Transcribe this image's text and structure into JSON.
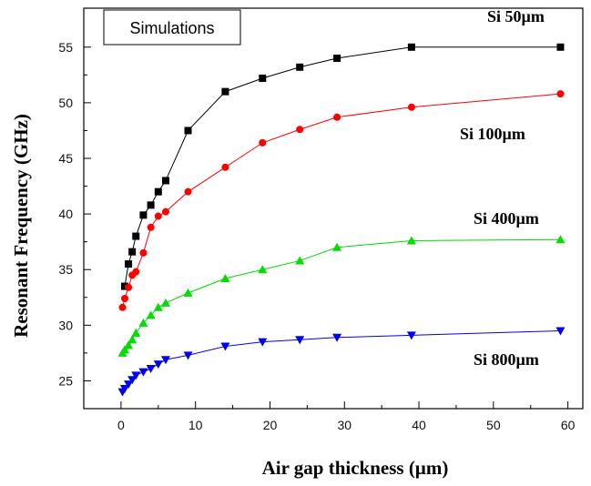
{
  "chart_data": {
    "type": "line",
    "xlabel": "Air gap thickness (µm)",
    "ylabel": "Resonant Frequency (GHz)",
    "annotation": "Simulations",
    "xlim": [
      -5,
      62
    ],
    "ylim": [
      22.5,
      58.5
    ],
    "xticks": [
      0,
      10,
      20,
      30,
      40,
      50,
      60
    ],
    "yticks": [
      25,
      30,
      35,
      40,
      45,
      50,
      55
    ],
    "grid": false,
    "series": [
      {
        "name": "Si 50µm",
        "color": "#000000",
        "marker": "square",
        "x": [
          0.5,
          1,
          1.5,
          2,
          3,
          4,
          5,
          6,
          9,
          14,
          19,
          24,
          29,
          39,
          59
        ],
        "y": [
          33.5,
          35.5,
          36.6,
          38.0,
          39.9,
          40.8,
          42.0,
          43.0,
          47.5,
          51.0,
          52.2,
          53.2,
          54.0,
          55.0,
          55.0
        ]
      },
      {
        "name": "Si 100µm",
        "color": "#ff0000",
        "marker": "circle",
        "x": [
          0.2,
          0.5,
          1,
          1.5,
          2,
          3,
          4,
          5,
          6,
          9,
          14,
          19,
          24,
          29,
          39,
          59
        ],
        "y": [
          31.6,
          32.4,
          33.4,
          34.5,
          34.8,
          36.5,
          38.8,
          39.8,
          40.2,
          42.0,
          44.2,
          46.4,
          47.6,
          48.7,
          49.6,
          50.8
        ]
      },
      {
        "name": "Si 400µm",
        "color": "#00dd00",
        "marker": "triangle-up",
        "x": [
          0.2,
          0.5,
          1,
          1.5,
          2,
          3,
          4,
          5,
          6,
          9,
          14,
          19,
          24,
          29,
          39,
          59
        ],
        "y": [
          27.5,
          27.8,
          28.2,
          28.7,
          29.3,
          30.2,
          30.9,
          31.6,
          32.0,
          32.9,
          34.2,
          35.0,
          35.8,
          37.0,
          37.6,
          37.7
        ]
      },
      {
        "name": "Si 800µm",
        "color": "#0000ee",
        "marker": "triangle-down",
        "x": [
          0.2,
          0.5,
          1,
          1.5,
          2,
          3,
          4,
          5,
          6,
          9,
          14,
          19,
          24,
          29,
          39,
          59
        ],
        "y": [
          24.0,
          24.3,
          24.7,
          25.1,
          25.5,
          25.8,
          26.1,
          26.5,
          26.9,
          27.3,
          28.1,
          28.5,
          28.7,
          28.9,
          29.1,
          29.5
        ]
      }
    ]
  }
}
